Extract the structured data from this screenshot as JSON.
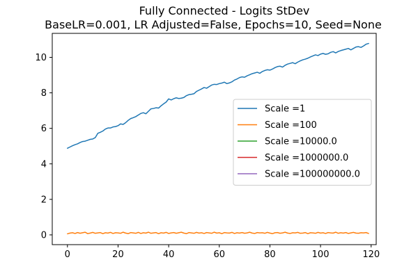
{
  "chart_data": {
    "type": "line",
    "title": "Fully Connected - Logits StDev",
    "subtitle": "BaseLR=0.001, LR Adjusted=False, Epochs=10, Seed=None",
    "xlabel": "",
    "ylabel": "",
    "xlim": [
      -6,
      122
    ],
    "ylim": [
      -0.55,
      11.35
    ],
    "x_ticks": [
      0,
      20,
      40,
      60,
      80,
      100,
      120
    ],
    "y_ticks": [
      0,
      2,
      4,
      6,
      8,
      10
    ],
    "grid": false,
    "legend_position": "center-right",
    "series": [
      {
        "name": "Scale =1",
        "color": "#1f77b4",
        "x": [
          0,
          1,
          2,
          3,
          4,
          5,
          6,
          7,
          8,
          9,
          10,
          11,
          12,
          13,
          14,
          15,
          16,
          17,
          18,
          19,
          20,
          21,
          22,
          23,
          24,
          25,
          26,
          27,
          28,
          29,
          30,
          31,
          32,
          33,
          34,
          35,
          36,
          37,
          38,
          39,
          40,
          41,
          42,
          43,
          44,
          45,
          46,
          47,
          48,
          49,
          50,
          51,
          52,
          53,
          54,
          55,
          56,
          57,
          58,
          59,
          60,
          61,
          62,
          63,
          64,
          65,
          66,
          67,
          68,
          69,
          70,
          71,
          72,
          73,
          74,
          75,
          76,
          77,
          78,
          79,
          80,
          81,
          82,
          83,
          84,
          85,
          86,
          87,
          88,
          89,
          90,
          91,
          92,
          93,
          94,
          95,
          96,
          97,
          98,
          99,
          100,
          101,
          102,
          103,
          104,
          105,
          106,
          107,
          108,
          109,
          110,
          111,
          112,
          113,
          114,
          115,
          116,
          117,
          118,
          119
        ],
        "values": [
          4.88,
          4.95,
          5.02,
          5.08,
          5.13,
          5.2,
          5.26,
          5.28,
          5.33,
          5.38,
          5.4,
          5.48,
          5.72,
          5.78,
          5.85,
          5.96,
          6.02,
          6.02,
          6.08,
          6.1,
          6.15,
          6.25,
          6.22,
          6.32,
          6.45,
          6.55,
          6.6,
          6.66,
          6.75,
          6.84,
          6.88,
          6.82,
          6.96,
          7.1,
          7.12,
          7.16,
          7.14,
          7.27,
          7.38,
          7.48,
          7.66,
          7.6,
          7.67,
          7.72,
          7.68,
          7.7,
          7.74,
          7.84,
          7.9,
          7.92,
          7.95,
          8.08,
          8.15,
          8.22,
          8.3,
          8.26,
          8.35,
          8.44,
          8.48,
          8.47,
          8.52,
          8.55,
          8.6,
          8.52,
          8.56,
          8.62,
          8.72,
          8.78,
          8.86,
          8.9,
          8.88,
          8.96,
          9.02,
          9.08,
          9.12,
          9.16,
          9.1,
          9.2,
          9.26,
          9.3,
          9.28,
          9.34,
          9.42,
          9.48,
          9.5,
          9.45,
          9.55,
          9.62,
          9.66,
          9.7,
          9.64,
          9.73,
          9.8,
          9.86,
          9.9,
          9.95,
          10.02,
          10.08,
          10.14,
          10.1,
          10.18,
          10.22,
          10.17,
          10.2,
          10.28,
          10.32,
          10.25,
          10.33,
          10.38,
          10.42,
          10.46,
          10.5,
          10.42,
          10.5,
          10.58,
          10.6,
          10.56,
          10.64,
          10.74,
          10.78
        ]
      },
      {
        "name": "Scale =100",
        "color": "#ff7f0e",
        "x": [
          0,
          1,
          2,
          3,
          4,
          5,
          6,
          7,
          8,
          9,
          10,
          11,
          12,
          13,
          14,
          15,
          16,
          17,
          18,
          19,
          20,
          21,
          22,
          23,
          24,
          25,
          26,
          27,
          28,
          29,
          30,
          31,
          32,
          33,
          34,
          35,
          36,
          37,
          38,
          39,
          40,
          41,
          42,
          43,
          44,
          45,
          46,
          47,
          48,
          49,
          50,
          51,
          52,
          53,
          54,
          55,
          56,
          57,
          58,
          59,
          60,
          61,
          62,
          63,
          64,
          65,
          66,
          67,
          68,
          69,
          70,
          71,
          72,
          73,
          74,
          75,
          76,
          77,
          78,
          79,
          80,
          81,
          82,
          83,
          84,
          85,
          86,
          87,
          88,
          89,
          90,
          91,
          92,
          93,
          94,
          95,
          96,
          97,
          98,
          99,
          100,
          101,
          102,
          103,
          104,
          105,
          106,
          107,
          108,
          109,
          110,
          111,
          112,
          113,
          114,
          115,
          116,
          117,
          118,
          119
        ],
        "values": [
          0.06,
          0.1,
          0.12,
          0.08,
          0.13,
          0.09,
          0.12,
          0.15,
          0.07,
          0.1,
          0.14,
          0.09,
          0.11,
          0.13,
          0.07,
          0.12,
          0.1,
          0.14,
          0.08,
          0.12,
          0.11,
          0.09,
          0.15,
          0.1,
          0.07,
          0.13,
          0.11,
          0.09,
          0.14,
          0.08,
          0.12,
          0.1,
          0.15,
          0.09,
          0.11,
          0.13,
          0.07,
          0.12,
          0.1,
          0.14,
          0.08,
          0.11,
          0.13,
          0.09,
          0.12,
          0.15,
          0.1,
          0.07,
          0.13,
          0.11,
          0.09,
          0.14,
          0.1,
          0.12,
          0.08,
          0.13,
          0.11,
          0.09,
          0.15,
          0.1,
          0.12,
          0.07,
          0.13,
          0.11,
          0.1,
          0.14,
          0.08,
          0.12,
          0.1,
          0.13,
          0.09,
          0.11,
          0.15,
          0.1,
          0.08,
          0.13,
          0.11,
          0.12,
          0.09,
          0.14,
          0.1,
          0.07,
          0.12,
          0.13,
          0.09,
          0.11,
          0.15,
          0.1,
          0.08,
          0.12,
          0.11,
          0.14,
          0.09,
          0.1,
          0.13,
          0.07,
          0.12,
          0.11,
          0.09,
          0.14,
          0.1,
          0.12,
          0.08,
          0.13,
          0.11,
          0.1,
          0.15,
          0.09,
          0.12,
          0.1,
          0.13,
          0.08,
          0.11,
          0.14,
          0.1,
          0.09,
          0.12,
          0.11,
          0.13,
          0.08
        ]
      },
      {
        "name": "Scale =10000.0",
        "color": "#2ca02c",
        "x": [],
        "values": []
      },
      {
        "name": "Scale =1000000.0",
        "color": "#d62728",
        "x": [],
        "values": []
      },
      {
        "name": "Scale =100000000.0",
        "color": "#9467bd",
        "x": [],
        "values": []
      }
    ]
  }
}
